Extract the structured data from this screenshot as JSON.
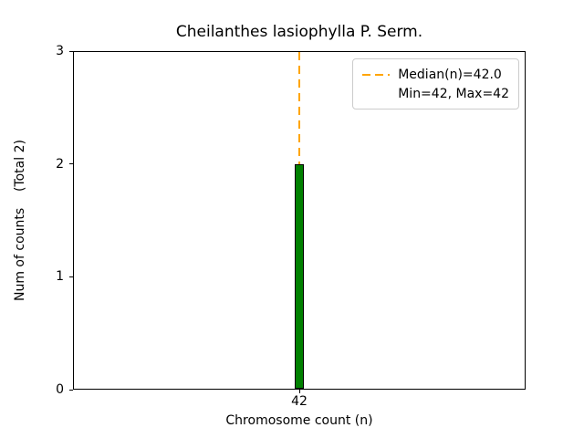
{
  "chart_data": {
    "type": "bar",
    "title": "Cheilanthes lasiophylla P. Serm.",
    "xlabel": "Chromosome count (n)",
    "ylabel": "Num of counts    (Total 2)",
    "categories": [
      "42"
    ],
    "values": [
      2
    ],
    "total_counts": 2,
    "ylim": [
      0,
      3
    ],
    "yticks": [
      0,
      1,
      2,
      3
    ],
    "bar_color": "#008000",
    "bar_edge_color": "#000000",
    "median_line": {
      "value": 42.0,
      "color": "#FFA500",
      "style": "dashed"
    },
    "legend": {
      "position": "upper right",
      "entries": [
        "Median(n)=42.0",
        "Min=42, Max=42"
      ]
    },
    "grid": false
  }
}
